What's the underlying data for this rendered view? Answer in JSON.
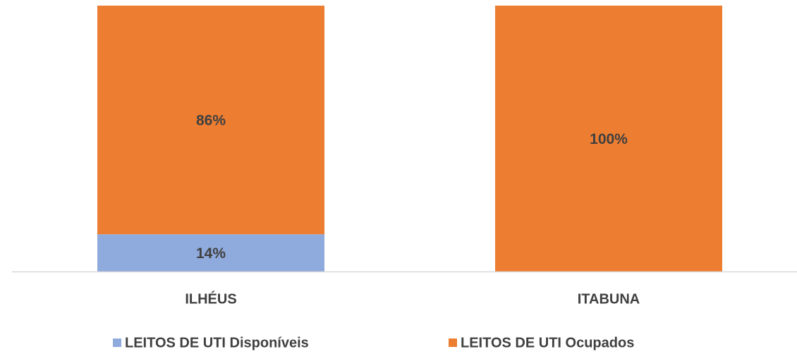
{
  "chart_data": {
    "type": "stacked_bar",
    "categories": [
      "ILHÉUS",
      "ITABUNA"
    ],
    "series": [
      {
        "name": "LEITOS DE UTI Disponíveis",
        "color": "#8faadc",
        "values": [
          14,
          0
        ],
        "value_labels": [
          "14%",
          null
        ]
      },
      {
        "name": "LEITOS DE UTI Ocupados",
        "color": "#ed7d31",
        "values": [
          86,
          100
        ],
        "value_labels": [
          "86%",
          "100%"
        ]
      }
    ],
    "ylim": [
      0,
      100
    ],
    "legend": "bottom"
  }
}
